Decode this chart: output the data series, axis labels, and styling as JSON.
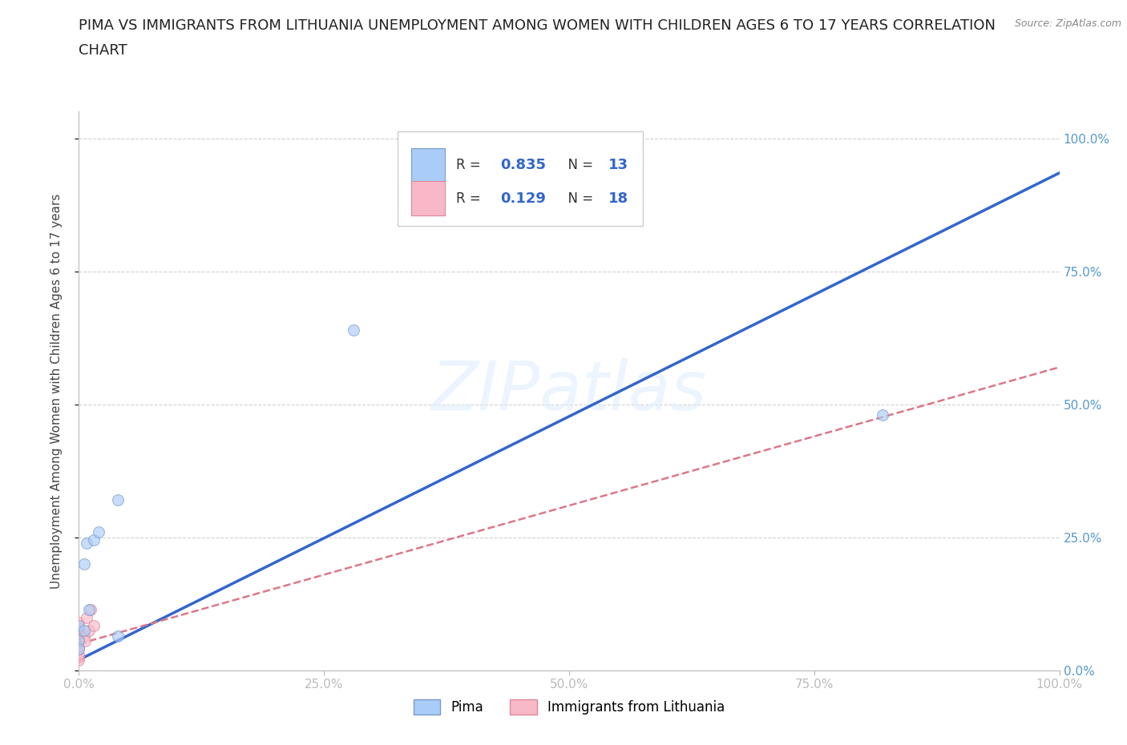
{
  "title_line1": "PIMA VS IMMIGRANTS FROM LITHUANIA UNEMPLOYMENT AMONG WOMEN WITH CHILDREN AGES 6 TO 17 YEARS CORRELATION",
  "title_line2": "CHART",
  "source": "Source: ZipAtlas.com",
  "ylabel": "Unemployment Among Women with Children Ages 6 to 17 years",
  "background_color": "#ffffff",
  "watermark_text": "ZIPatlas",
  "pima_color": "#aaccf8",
  "pima_edge_color": "#7799cc",
  "lithuania_color": "#f8b8c8",
  "lithuania_edge_color": "#dd8899",
  "pima_line_color": "#3366cc",
  "lithuania_line_color": "#dd7788",
  "pima_R": 0.835,
  "pima_N": 13,
  "lithuania_R": 0.129,
  "lithuania_N": 18,
  "pima_scatter_x": [
    0.005,
    0.008,
    0.015,
    0.02,
    0.01,
    0.0,
    0.0,
    0.0,
    0.005,
    0.28,
    0.82,
    0.04,
    0.04
  ],
  "pima_scatter_y": [
    0.2,
    0.24,
    0.245,
    0.26,
    0.115,
    0.055,
    0.085,
    0.04,
    0.075,
    0.64,
    0.48,
    0.32,
    0.065
  ],
  "lithuania_scatter_x": [
    0.0,
    0.0,
    0.0,
    0.0,
    0.0,
    0.0,
    0.0,
    0.0,
    0.0,
    0.0,
    0.0,
    0.0,
    0.005,
    0.01,
    0.008,
    0.012,
    0.006,
    0.015
  ],
  "lithuania_scatter_y": [
    0.02,
    0.025,
    0.03,
    0.04,
    0.045,
    0.055,
    0.058,
    0.06,
    0.065,
    0.07,
    0.08,
    0.09,
    0.065,
    0.075,
    0.1,
    0.115,
    0.055,
    0.085
  ],
  "pima_line_x0": 0.0,
  "pima_line_y0": 0.02,
  "pima_line_x1": 1.0,
  "pima_line_y1": 0.935,
  "lith_line_x0": 0.0,
  "lith_line_y0": 0.05,
  "lith_line_x1": 1.0,
  "lith_line_y1": 0.57,
  "xlim": [
    0.0,
    1.0
  ],
  "ylim": [
    0.0,
    1.05
  ],
  "xticks": [
    0.0,
    0.25,
    0.5,
    0.75,
    1.0
  ],
  "ytick_positions": [
    0.0,
    0.25,
    0.5,
    0.75,
    1.0
  ],
  "ytick_labels": [
    "0.0%",
    "25.0%",
    "50.0%",
    "75.0%",
    "100.0%"
  ],
  "xtick_labels": [
    "0.0%",
    "25.0%",
    "50.0%",
    "75.0%",
    "100.0%"
  ],
  "grid_color": "#cccccc",
  "scatter_size": 100,
  "scatter_alpha": 0.65,
  "title_fontsize": 13,
  "axis_fontsize": 11,
  "tick_fontsize": 11,
  "tick_color": "#5599cc",
  "source_color": "#888888"
}
